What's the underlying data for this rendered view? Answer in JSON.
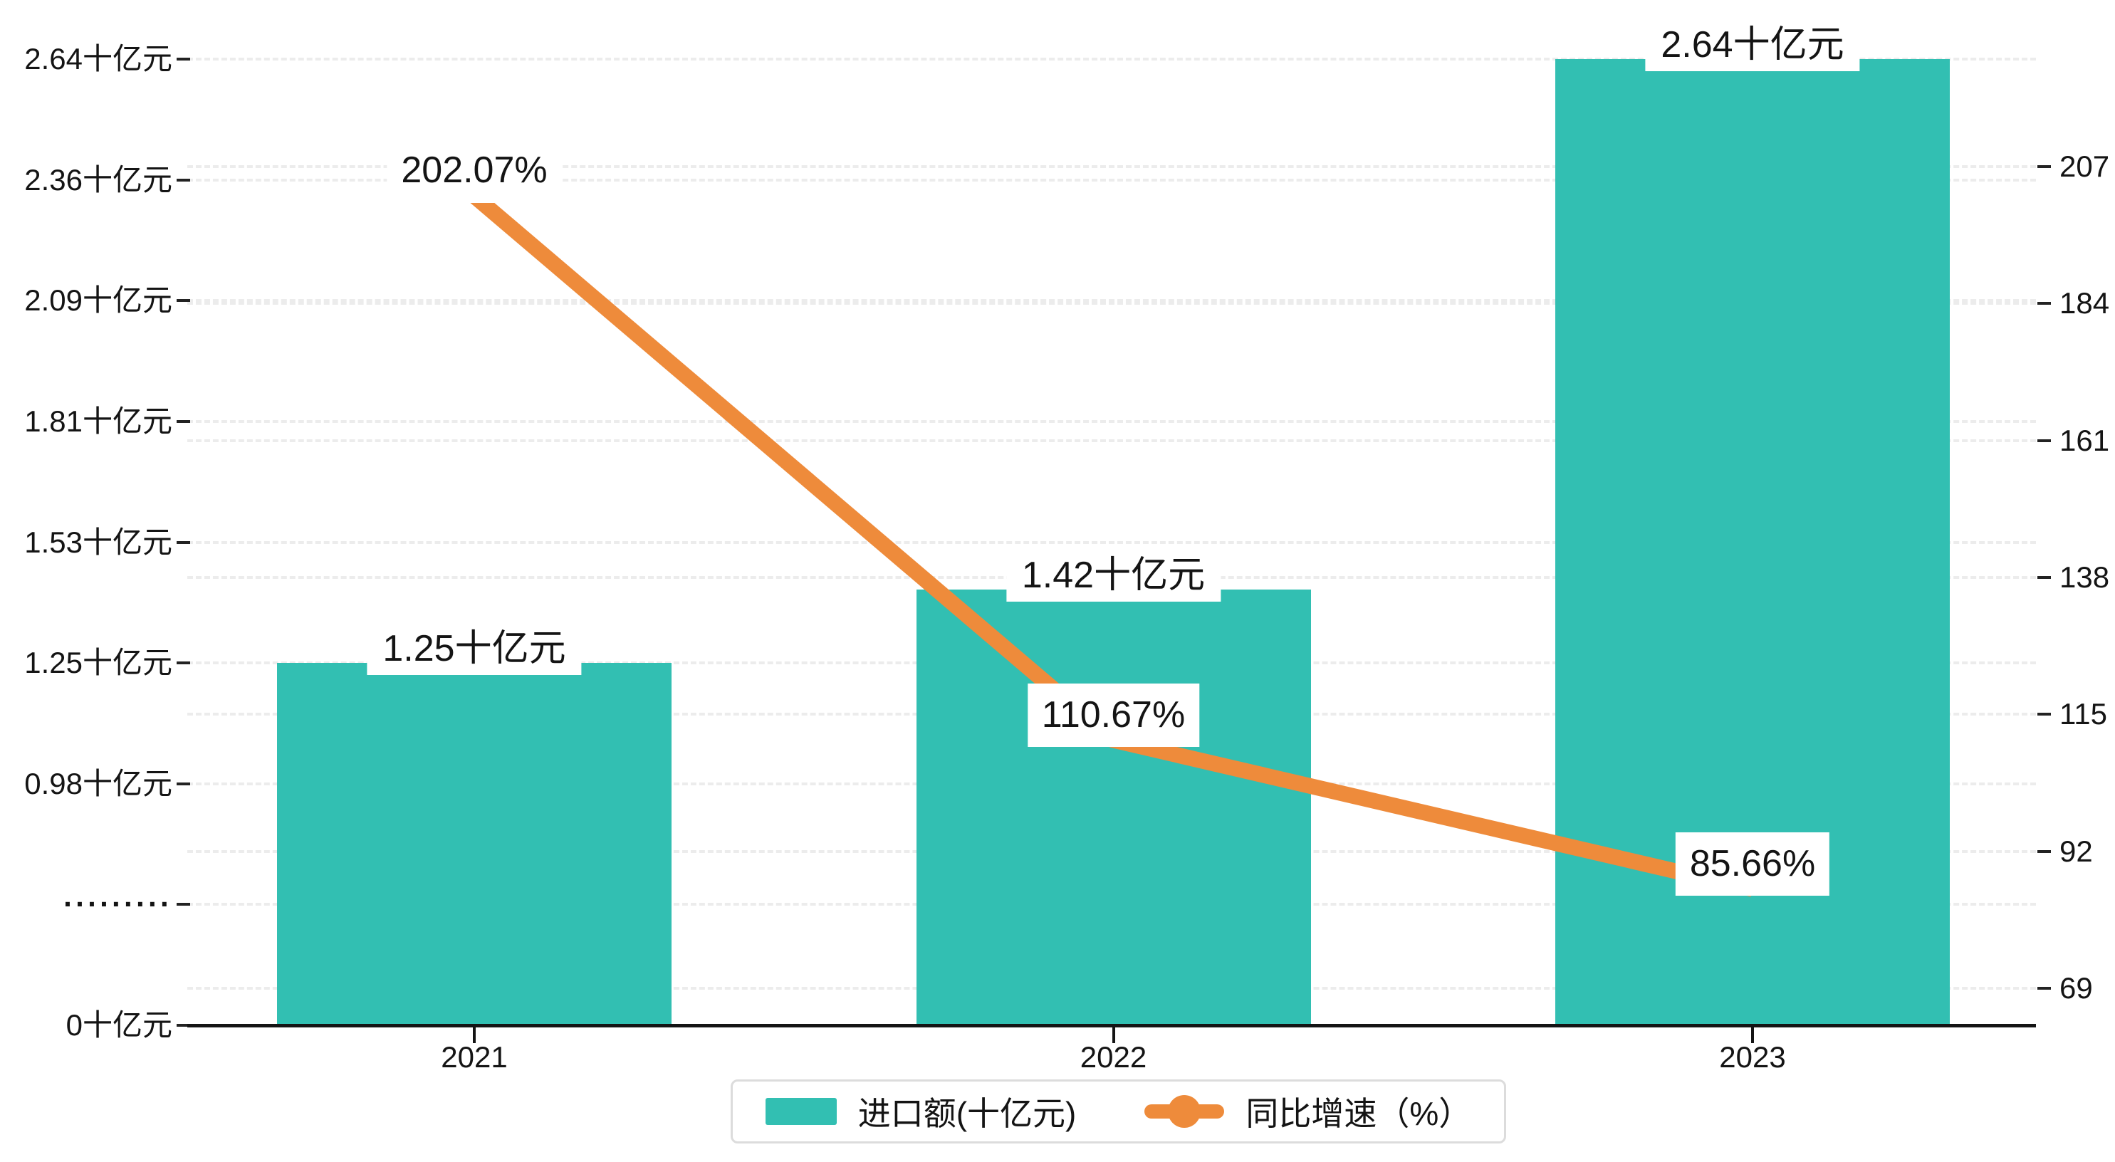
{
  "chart_data": {
    "type": "bar",
    "subtype": "bar-line-combo",
    "categories": [
      "2021",
      "2022",
      "2023"
    ],
    "series": [
      {
        "name": "进口额(十亿元)",
        "chart_type": "bar",
        "values": [
          1.25,
          1.42,
          2.64
        ],
        "labels": [
          "1.25十亿元",
          "1.42十亿元",
          "2.64十亿元"
        ],
        "color": "#32bfb2",
        "axis": "left"
      },
      {
        "name": "同比增速（%）",
        "chart_type": "line",
        "values": [
          202.07,
          110.67,
          85.66
        ],
        "labels": [
          "202.07%",
          "110.67%",
          "85.66%"
        ],
        "color": "#ee8b3b",
        "axis": "right"
      }
    ],
    "left_axis": {
      "tick_labels": [
        "2.64十亿元",
        "2.36十亿元",
        "2.09十亿元",
        "1.81十亿元",
        "1.53十亿元",
        "1.25十亿元",
        "0.98十亿元",
        "·········",
        "0十亿元"
      ],
      "tick_values": [
        2.64,
        2.36,
        2.09,
        1.81,
        1.53,
        1.25,
        0.98
      ],
      "break_symbol": "·········",
      "zero_label": "0十亿元"
    },
    "right_axis": {
      "tick_labels": [
        "207",
        "184",
        "161",
        "138",
        "115",
        "92",
        "69"
      ],
      "max": 207,
      "min": 69
    },
    "legend_position": "bottom",
    "grid": true,
    "title": ""
  },
  "colors": {
    "bar": "#32bfb2",
    "line": "#ee8b3b",
    "axis": "#141414",
    "grid": "#ececec",
    "legend_border": "#dcdcdc",
    "background": "#ffffff"
  }
}
